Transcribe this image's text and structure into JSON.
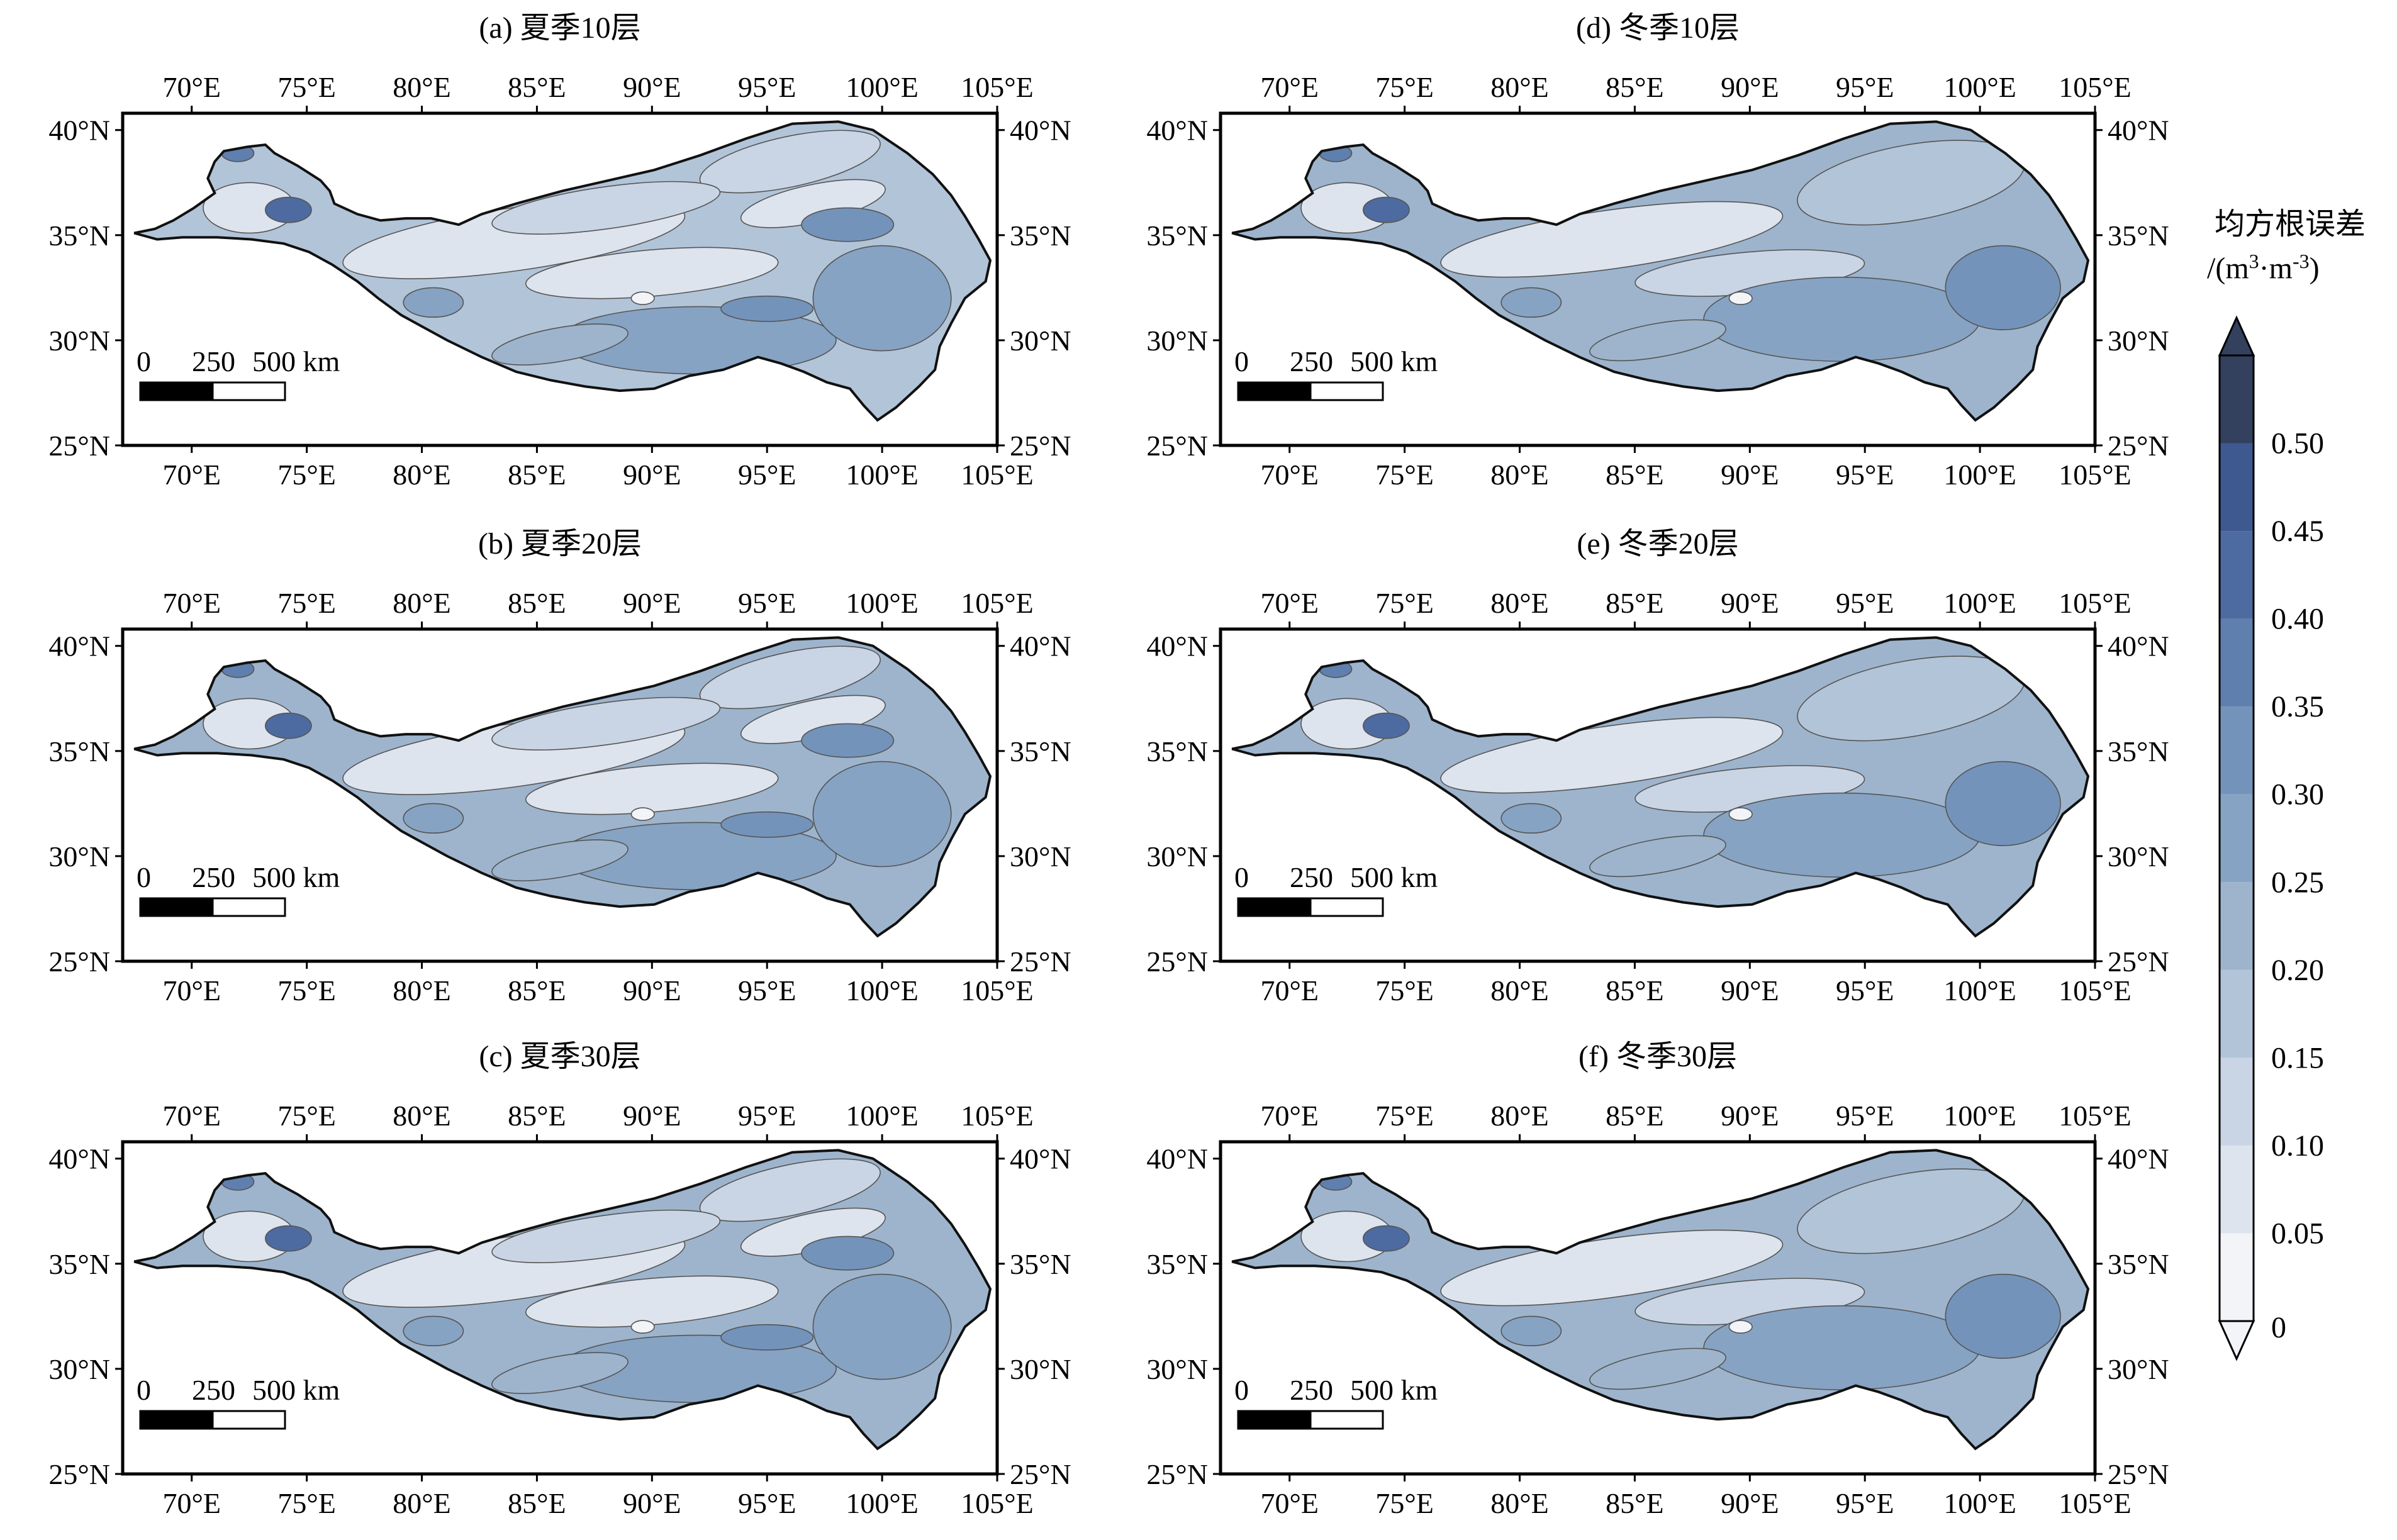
{
  "panels": [
    {
      "title": "(a) 夏季10层",
      "season": "summer",
      "level": 10
    },
    {
      "title": "(b) 夏季20层",
      "season": "summer",
      "level": 20
    },
    {
      "title": "(c) 夏季30层",
      "season": "summer",
      "level": 30
    },
    {
      "title": "(d) 冬季10层",
      "season": "winter",
      "level": 10
    },
    {
      "title": "(e) 冬季20层",
      "season": "winter",
      "level": 20
    },
    {
      "title": "(f) 冬季30层",
      "season": "winter",
      "level": 30
    }
  ],
  "axes": {
    "lon_ticks": [
      "70°E",
      "75°E",
      "80°E",
      "85°E",
      "90°E",
      "95°E",
      "100°E",
      "105°E"
    ],
    "lon_values": [
      70,
      75,
      80,
      85,
      90,
      95,
      100,
      105
    ],
    "lat_ticks": [
      "25°N",
      "30°N",
      "35°N",
      "40°N"
    ],
    "lat_values": [
      25,
      30,
      35,
      40
    ],
    "lon_range": [
      67,
      105
    ],
    "lat_range": [
      25,
      40.8
    ]
  },
  "scalebar": {
    "label_0": "0",
    "label_250": "250",
    "label_500": "500 km"
  },
  "colorbar": {
    "title_line1": "均方根误差",
    "title_line2_prefix": "/(m",
    "title_line2_sup1": "3",
    "title_line2_mid": "·m",
    "title_line2_sup2": "-3",
    "title_line2_suffix": ")",
    "ticks": [
      "0",
      "0.05",
      "0.10",
      "0.15",
      "0.20",
      "0.25",
      "0.30",
      "0.35",
      "0.40",
      "0.45",
      "0.50"
    ],
    "colors": [
      "#f2f4f8",
      "#dde4ee",
      "#c9d5e4",
      "#b2c4d8",
      "#9db4cc",
      "#87a3c3",
      "#7393ba",
      "#5f7fae",
      "#4d6ba0",
      "#3e5890",
      "#33405e"
    ]
  },
  "chart_data": {
    "type": "heatmap",
    "variable": "RMSE",
    "levels": [
      0,
      0.05,
      0.1,
      0.15,
      0.2,
      0.25,
      0.3,
      0.35,
      0.4,
      0.45,
      0.5
    ],
    "extend": "both"
  }
}
